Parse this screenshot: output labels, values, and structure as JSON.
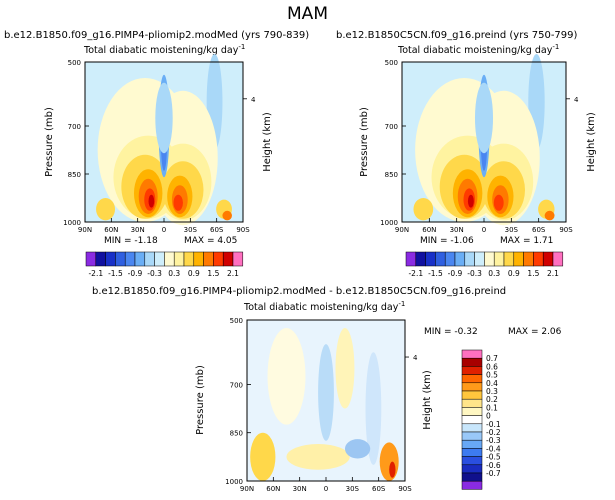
{
  "page": {
    "title": "MAM"
  },
  "colors": {
    "contour_levels": [
      -2.1,
      -1.8,
      -1.5,
      -1.2,
      -0.9,
      -0.6,
      -0.3,
      0,
      0.3,
      0.6,
      0.9,
      1.2,
      1.5,
      1.8,
      2.1
    ],
    "contour_palette": [
      "#8a2be2",
      "#1010a0",
      "#1830c8",
      "#2f5fe0",
      "#4a86f0",
      "#6aaef5",
      "#a9d8f8",
      "#cfeefb",
      "#fffad0",
      "#fff3a0",
      "#ffd84a",
      "#ffb300",
      "#ff7a00",
      "#ff3a00",
      "#d00000",
      "#ff70c0"
    ],
    "diff_palette": [
      "#8a2be2",
      "#10108c",
      "#1a2cc0",
      "#2a4fe0",
      "#3d7bf0",
      "#68a8f5",
      "#99c8f8",
      "#c8e6fb",
      "#ffffff",
      "#fff7c2",
      "#ffe58a",
      "#ffc63d",
      "#ff9a1a",
      "#ff6600",
      "#e02000",
      "#a80000",
      "#ff70c0"
    ]
  },
  "chart_data": [
    {
      "type": "heatmap",
      "title": "b.e12.B1850.f09_g16.PIMP4-pliomip2.modMed (yrs 790-839)",
      "subtitle": "Total diabatic moistening/kg day",
      "subtitle_unit_sup": "-1",
      "xlabel": "",
      "ylabel": "Pressure (mb)",
      "y2label": "Height (km)",
      "x_ticks": [
        "90N",
        "60N",
        "30N",
        "0",
        "30S",
        "60S",
        "90S"
      ],
      "y_ticks": [
        "500",
        "700",
        "850",
        "1000"
      ],
      "y2_ticks": [
        "4"
      ],
      "min_label": "MIN = -1.18",
      "max_label": "MAX = 4.05",
      "colorbar_orientation": "horizontal",
      "colorbar_labels": [
        "-2.1",
        "-1.5",
        "-0.9",
        "-0.3",
        "0.3",
        "0.9",
        "1.5",
        "2.1"
      ]
    },
    {
      "type": "heatmap",
      "title": "b.e12.B1850C5CN.f09_g16.preind (yrs 750-799)",
      "subtitle": "Total diabatic moistening/kg day",
      "subtitle_unit_sup": "-1",
      "xlabel": "",
      "ylabel": "Pressure (mb)",
      "y2label": "Height (km)",
      "x_ticks": [
        "90N",
        "60N",
        "30N",
        "0",
        "30S",
        "60S",
        "90S"
      ],
      "y_ticks": [
        "500",
        "700",
        "850",
        "1000"
      ],
      "y2_ticks": [
        "4"
      ],
      "min_label": "MIN = -1.06",
      "max_label": "MAX = 1.71",
      "colorbar_orientation": "horizontal",
      "colorbar_labels": [
        "-2.1",
        "-1.5",
        "-0.9",
        "-0.3",
        "0.3",
        "0.9",
        "1.5",
        "2.1"
      ]
    },
    {
      "type": "heatmap",
      "title": "b.e12.B1850.f09_g16.PIMP4-pliomip2.modMed - b.e12.B1850C5CN.f09_g16.preind",
      "subtitle": "Total diabatic moistening/kg day",
      "subtitle_unit_sup": "-1",
      "xlabel": "",
      "ylabel": "Pressure (mb)",
      "y2label": "Height (km)",
      "x_ticks": [
        "90N",
        "60N",
        "30N",
        "0",
        "30S",
        "60S",
        "90S"
      ],
      "y_ticks": [
        "500",
        "700",
        "850",
        "1000"
      ],
      "y2_ticks": [
        "4"
      ],
      "min_label": "MIN = -0.32",
      "max_label": "MAX = 2.06",
      "colorbar_orientation": "vertical",
      "colorbar_labels": [
        "0.7",
        "0.6",
        "0.5",
        "0.4",
        "0.3",
        "0.2",
        "0.1",
        "0",
        "-0.1",
        "-0.2",
        "-0.3",
        "-0.4",
        "-0.5",
        "-0.6",
        "-0.7"
      ]
    }
  ]
}
